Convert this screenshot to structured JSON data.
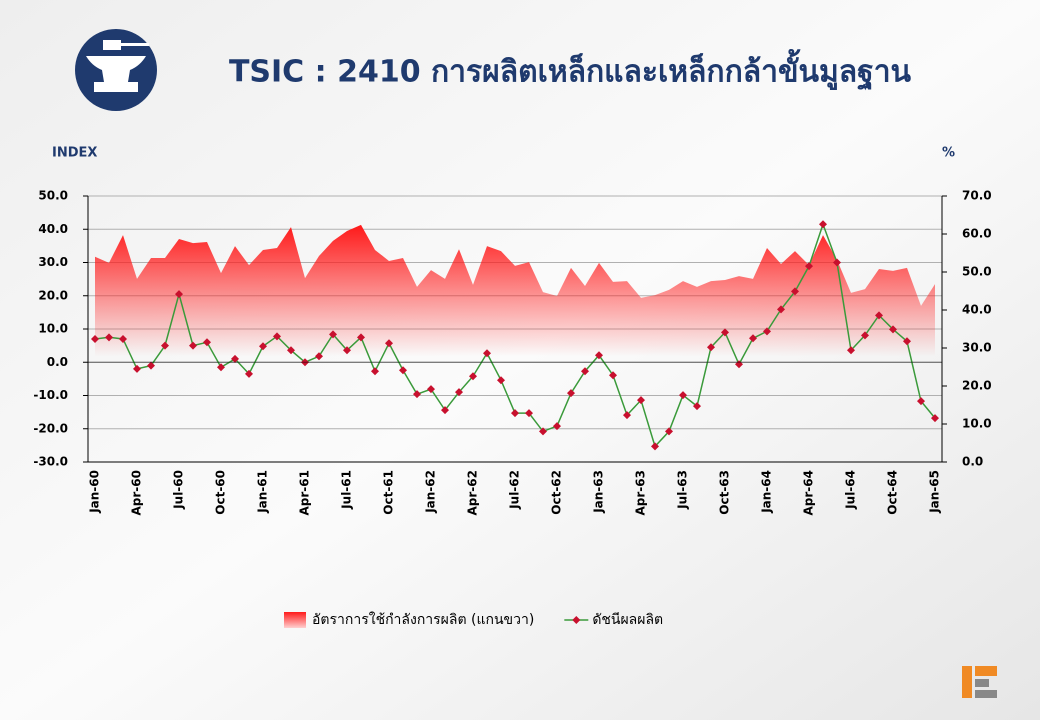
{
  "chart_data": {
    "type": "combo",
    "title": "TSIC : 2410 การผลิตเหล็กและเหล็กกล้าขั้นมูลฐาน",
    "y_label": "INDEX",
    "y2_label": "%",
    "categories": [
      "Jan-60",
      null,
      null,
      "Apr-60",
      null,
      null,
      "Jul-60",
      null,
      null,
      "Oct-60",
      null,
      null,
      "Jan-61",
      null,
      null,
      "Apr-61",
      null,
      null,
      "Jul-61",
      null,
      null,
      "Oct-61",
      null,
      null,
      "Jan-62",
      null,
      null,
      "Apr-62",
      null,
      null,
      "Jul-62",
      null,
      null,
      "Oct-62",
      null,
      null,
      "Jan-63",
      null,
      null,
      "Apr-63",
      null,
      null,
      "Jul-63",
      null,
      null,
      "Oct-63",
      null,
      null,
      "Jan-64",
      null,
      null,
      "Apr-64",
      null,
      null,
      "Jul-64",
      null,
      null,
      "Oct-64",
      null,
      null,
      "Jan-65"
    ],
    "series": [
      {
        "name": "อัตราการใช้กำลังการผลิต (แกนขวา)",
        "type": "area",
        "axis": "y2",
        "color": "#ff1a1a",
        "values": [
          54,
          52.4,
          59.7,
          48.2,
          53.7,
          53.7,
          58.7,
          57.6,
          57.9,
          49.7,
          56.8,
          51.8,
          55.8,
          56.3,
          61.8,
          48.4,
          54.2,
          58.2,
          60.8,
          62.4,
          55.8,
          52.9,
          53.7,
          46.1,
          50.5,
          48.2,
          56,
          46.6,
          56.8,
          55.5,
          51.6,
          52.6,
          44.7,
          43.7,
          51.1,
          46.3,
          52.4,
          47.4,
          47.6,
          43.2,
          43.9,
          45.3,
          47.6,
          46.1,
          47.6,
          47.9,
          48.9,
          48.2,
          56.3,
          52.1,
          55.5,
          51.8,
          59.7,
          53.2,
          44.5,
          45.5,
          50.8,
          50.3,
          51.1,
          41.1,
          46.8
        ]
      },
      {
        "name": "ดัชนีผลผลิต",
        "type": "line",
        "axis": "y",
        "color": "#3a9a3a",
        "marker_color": "#c8102e",
        "values": [
          7,
          7.5,
          7,
          -2,
          -1,
          5,
          20.5,
          5,
          6,
          -1.5,
          1,
          -3.5,
          4.8,
          7.8,
          3.6,
          0,
          1.8,
          8.4,
          3.6,
          7.5,
          -2.7,
          5.7,
          -2.4,
          -9.6,
          -8.1,
          -14.4,
          -9,
          -4.2,
          2.7,
          -5.4,
          -15.3,
          -15.3,
          -20.8,
          -19.2,
          -9.3,
          -2.7,
          2.1,
          -3.9,
          -15.9,
          -11.4,
          -25.3,
          -20.8,
          -9.9,
          -13.2,
          4.5,
          9,
          -0.6,
          7.2,
          9.3,
          15.9,
          21.3,
          28.9,
          41.5,
          30,
          3.6,
          8.1,
          14.1,
          9.9,
          6.3,
          -11.7,
          -16.8
        ]
      }
    ],
    "ylim": [
      -30,
      50
    ],
    "yticks": [
      {
        "value": -30,
        "label": "-30.0"
      },
      {
        "value": -20,
        "label": "-20.0"
      },
      {
        "value": -10,
        "label": "-10.0"
      },
      {
        "value": 0,
        "label": "0.0"
      },
      {
        "value": 10,
        "label": "10.0"
      },
      {
        "value": 20,
        "label": "20.0"
      },
      {
        "value": 30,
        "label": "30.0"
      },
      {
        "value": 40,
        "label": "40.0"
      },
      {
        "value": 50,
        "label": "50.0"
      }
    ],
    "y2lim": [
      0,
      70
    ],
    "y2ticks": [
      {
        "value": 0,
        "label": "0.0"
      },
      {
        "value": 10,
        "label": "10.0"
      },
      {
        "value": 20,
        "label": "20.0"
      },
      {
        "value": 30,
        "label": "30.0"
      },
      {
        "value": 40,
        "label": "40.0"
      },
      {
        "value": 50,
        "label": "50.0"
      },
      {
        "value": 60,
        "label": "60.0"
      },
      {
        "value": 70,
        "label": "70.0"
      }
    ],
    "grid": true,
    "legend": "bottom"
  }
}
